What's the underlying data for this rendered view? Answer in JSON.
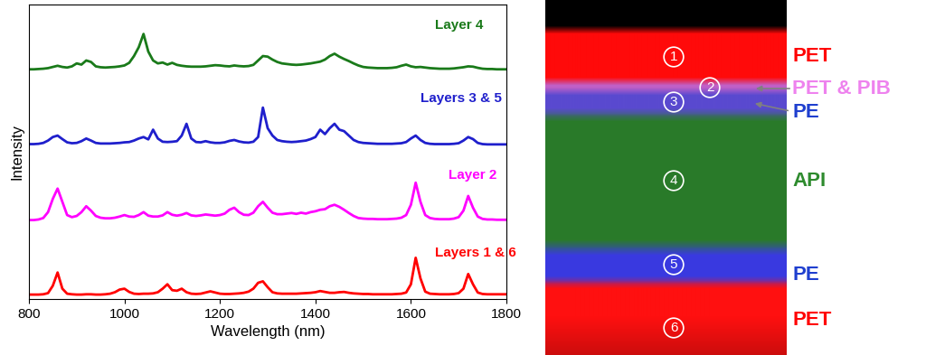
{
  "chart_data": {
    "type": "line",
    "x_label": "Wavelength (nm)",
    "y_label": "Intensity",
    "x": [
      800,
      810,
      820,
      830,
      840,
      850,
      860,
      870,
      880,
      890,
      900,
      910,
      920,
      930,
      940,
      950,
      960,
      970,
      980,
      990,
      1000,
      1010,
      1020,
      1030,
      1040,
      1050,
      1060,
      1070,
      1080,
      1090,
      1100,
      1110,
      1120,
      1130,
      1140,
      1150,
      1160,
      1170,
      1180,
      1190,
      1200,
      1210,
      1220,
      1230,
      1240,
      1250,
      1260,
      1270,
      1280,
      1290,
      1300,
      1310,
      1320,
      1330,
      1340,
      1350,
      1360,
      1370,
      1380,
      1390,
      1400,
      1410,
      1420,
      1430,
      1440,
      1450,
      1460,
      1470,
      1480,
      1490,
      1500,
      1510,
      1520,
      1530,
      1540,
      1550,
      1560,
      1570,
      1580,
      1590,
      1600,
      1610,
      1620,
      1630,
      1640,
      1650,
      1660,
      1670,
      1680,
      1690,
      1700,
      1710,
      1720,
      1730,
      1740,
      1750,
      1760,
      1770,
      1780,
      1790,
      1800
    ],
    "xlim": [
      800,
      1800
    ],
    "xticks": [
      800,
      1000,
      1200,
      1400,
      1600,
      1800
    ],
    "ylim": [
      0,
      100
    ],
    "yticks": [],
    "tick_labels": "x",
    "series": [
      {
        "name": "Layer 4",
        "color": "#1a7a1a",
        "values": [
          78.0,
          78.0,
          78.1,
          78.2,
          78.4,
          78.8,
          79.2,
          78.8,
          78.6,
          79.0,
          80.0,
          79.6,
          81.0,
          80.5,
          79.0,
          78.7,
          78.6,
          78.7,
          78.8,
          79.0,
          79.3,
          80.2,
          82.5,
          85.5,
          90.0,
          84.0,
          81.0,
          80.0,
          80.3,
          79.6,
          80.2,
          79.5,
          79.2,
          79.0,
          78.9,
          78.9,
          78.9,
          79.0,
          79.2,
          79.4,
          79.3,
          79.1,
          79.0,
          79.3,
          79.1,
          79.0,
          79.1,
          79.5,
          81.0,
          82.5,
          82.3,
          81.3,
          80.5,
          80.0,
          79.8,
          79.6,
          79.5,
          79.6,
          79.8,
          80.0,
          80.3,
          80.6,
          81.3,
          82.5,
          83.3,
          82.3,
          81.5,
          80.8,
          80.0,
          79.3,
          78.8,
          78.6,
          78.5,
          78.4,
          78.4,
          78.4,
          78.5,
          78.7,
          79.2,
          79.6,
          79.0,
          78.7,
          78.8,
          78.6,
          78.4,
          78.3,
          78.2,
          78.2,
          78.2,
          78.3,
          78.5,
          78.7,
          79.0,
          78.9,
          78.5,
          78.2,
          78.1,
          78.1,
          78.0,
          78.0,
          78.0
        ]
      },
      {
        "name": "Layers 3 & 5",
        "color": "#1f1fcc",
        "values": [
          52.6,
          52.6,
          52.7,
          53.0,
          53.8,
          55.0,
          55.5,
          54.3,
          53.2,
          52.9,
          53.0,
          53.6,
          54.5,
          53.8,
          53.0,
          52.8,
          52.8,
          52.8,
          52.9,
          53.0,
          53.2,
          53.3,
          53.8,
          54.5,
          55.0,
          54.2,
          57.5,
          54.5,
          53.4,
          53.3,
          53.4,
          53.6,
          55.5,
          59.5,
          54.5,
          53.3,
          53.2,
          53.6,
          53.2,
          53.0,
          53.0,
          53.2,
          53.7,
          54.0,
          53.5,
          53.2,
          53.1,
          53.4,
          55.0,
          65.0,
          58.0,
          55.5,
          54.0,
          53.6,
          53.4,
          53.3,
          53.4,
          53.6,
          53.8,
          54.3,
          55.0,
          57.5,
          56.0,
          58.0,
          59.5,
          57.5,
          57.0,
          55.5,
          54.0,
          53.3,
          53.0,
          52.9,
          52.8,
          52.7,
          52.7,
          52.7,
          52.7,
          52.8,
          52.9,
          53.3,
          54.5,
          55.5,
          54.0,
          53.0,
          52.7,
          52.6,
          52.6,
          52.6,
          52.6,
          52.7,
          52.9,
          53.8,
          55.0,
          54.3,
          53.0,
          52.6,
          52.5,
          52.5,
          52.5,
          52.5,
          52.5
        ]
      },
      {
        "name": "Layer 2",
        "color": "#ff00ff",
        "values": [
          26.8,
          26.8,
          27.0,
          27.5,
          29.5,
          34.0,
          37.5,
          33.0,
          28.5,
          27.8,
          28.2,
          29.5,
          31.5,
          30.0,
          28.2,
          27.6,
          27.4,
          27.4,
          27.6,
          28.0,
          28.5,
          28.0,
          27.9,
          28.5,
          29.5,
          28.3,
          28.0,
          28.0,
          28.4,
          29.5,
          28.6,
          28.3,
          28.6,
          29.2,
          28.4,
          28.2,
          28.4,
          28.7,
          28.5,
          28.3,
          28.5,
          29.0,
          30.3,
          31.0,
          29.5,
          28.6,
          28.5,
          29.3,
          31.5,
          33.0,
          31.0,
          29.3,
          28.8,
          28.8,
          29.0,
          29.2,
          28.9,
          29.3,
          29.0,
          29.5,
          29.8,
          30.3,
          30.5,
          31.5,
          32.0,
          31.3,
          30.3,
          29.2,
          28.2,
          27.5,
          27.3,
          27.2,
          27.2,
          27.1,
          27.1,
          27.1,
          27.2,
          27.3,
          27.6,
          28.5,
          32.0,
          39.5,
          33.0,
          28.5,
          27.5,
          27.2,
          27.1,
          27.1,
          27.1,
          27.3,
          27.8,
          30.0,
          35.0,
          31.0,
          28.0,
          27.2,
          27.0,
          27.0,
          26.9,
          26.9,
          26.9
        ]
      },
      {
        "name": "Layers 1 & 6",
        "color": "#ff0000",
        "values": [
          1.5,
          1.5,
          1.5,
          1.6,
          2.0,
          4.5,
          9.0,
          3.5,
          1.8,
          1.6,
          1.5,
          1.5,
          1.6,
          1.6,
          1.5,
          1.5,
          1.6,
          1.8,
          2.3,
          3.2,
          3.5,
          2.4,
          1.8,
          1.7,
          1.8,
          1.8,
          1.9,
          2.3,
          3.5,
          5.0,
          3.0,
          2.8,
          3.5,
          2.3,
          1.8,
          1.7,
          1.8,
          2.2,
          2.6,
          2.2,
          1.8,
          1.7,
          1.7,
          1.8,
          1.9,
          2.1,
          2.5,
          3.5,
          5.5,
          6.0,
          4.0,
          2.3,
          1.9,
          1.8,
          1.8,
          1.8,
          1.8,
          1.9,
          2.0,
          2.1,
          2.3,
          2.7,
          2.4,
          2.1,
          2.1,
          2.3,
          2.4,
          2.1,
          1.9,
          1.8,
          1.7,
          1.7,
          1.6,
          1.6,
          1.6,
          1.6,
          1.6,
          1.7,
          1.8,
          2.2,
          5.0,
          14.0,
          7.0,
          2.5,
          1.8,
          1.7,
          1.6,
          1.6,
          1.6,
          1.7,
          2.0,
          3.5,
          8.5,
          5.0,
          2.2,
          1.7,
          1.6,
          1.6,
          1.6,
          1.6,
          1.6
        ]
      }
    ]
  },
  "image": {
    "layers": [
      {
        "number": "1",
        "label": "PET",
        "color": "#ff0a0a",
        "label_color": "#ff0000"
      },
      {
        "number": "2",
        "label": "PET & PIB",
        "color": "#c060c8",
        "label_color": "#ee82ee"
      },
      {
        "number": "3",
        "label": "PE",
        "color": "#5a4ad0",
        "label_color": "#1f3fcf"
      },
      {
        "number": "4",
        "label": "API",
        "color": "#2a7a2a",
        "label_color": "#2e8b2e"
      },
      {
        "number": "5",
        "label": "PE",
        "color": "#3a3ae0",
        "label_color": "#1f3fcf"
      },
      {
        "number": "6",
        "label": "PET",
        "color": "#ff1010",
        "label_color": "#ff0000"
      }
    ]
  }
}
